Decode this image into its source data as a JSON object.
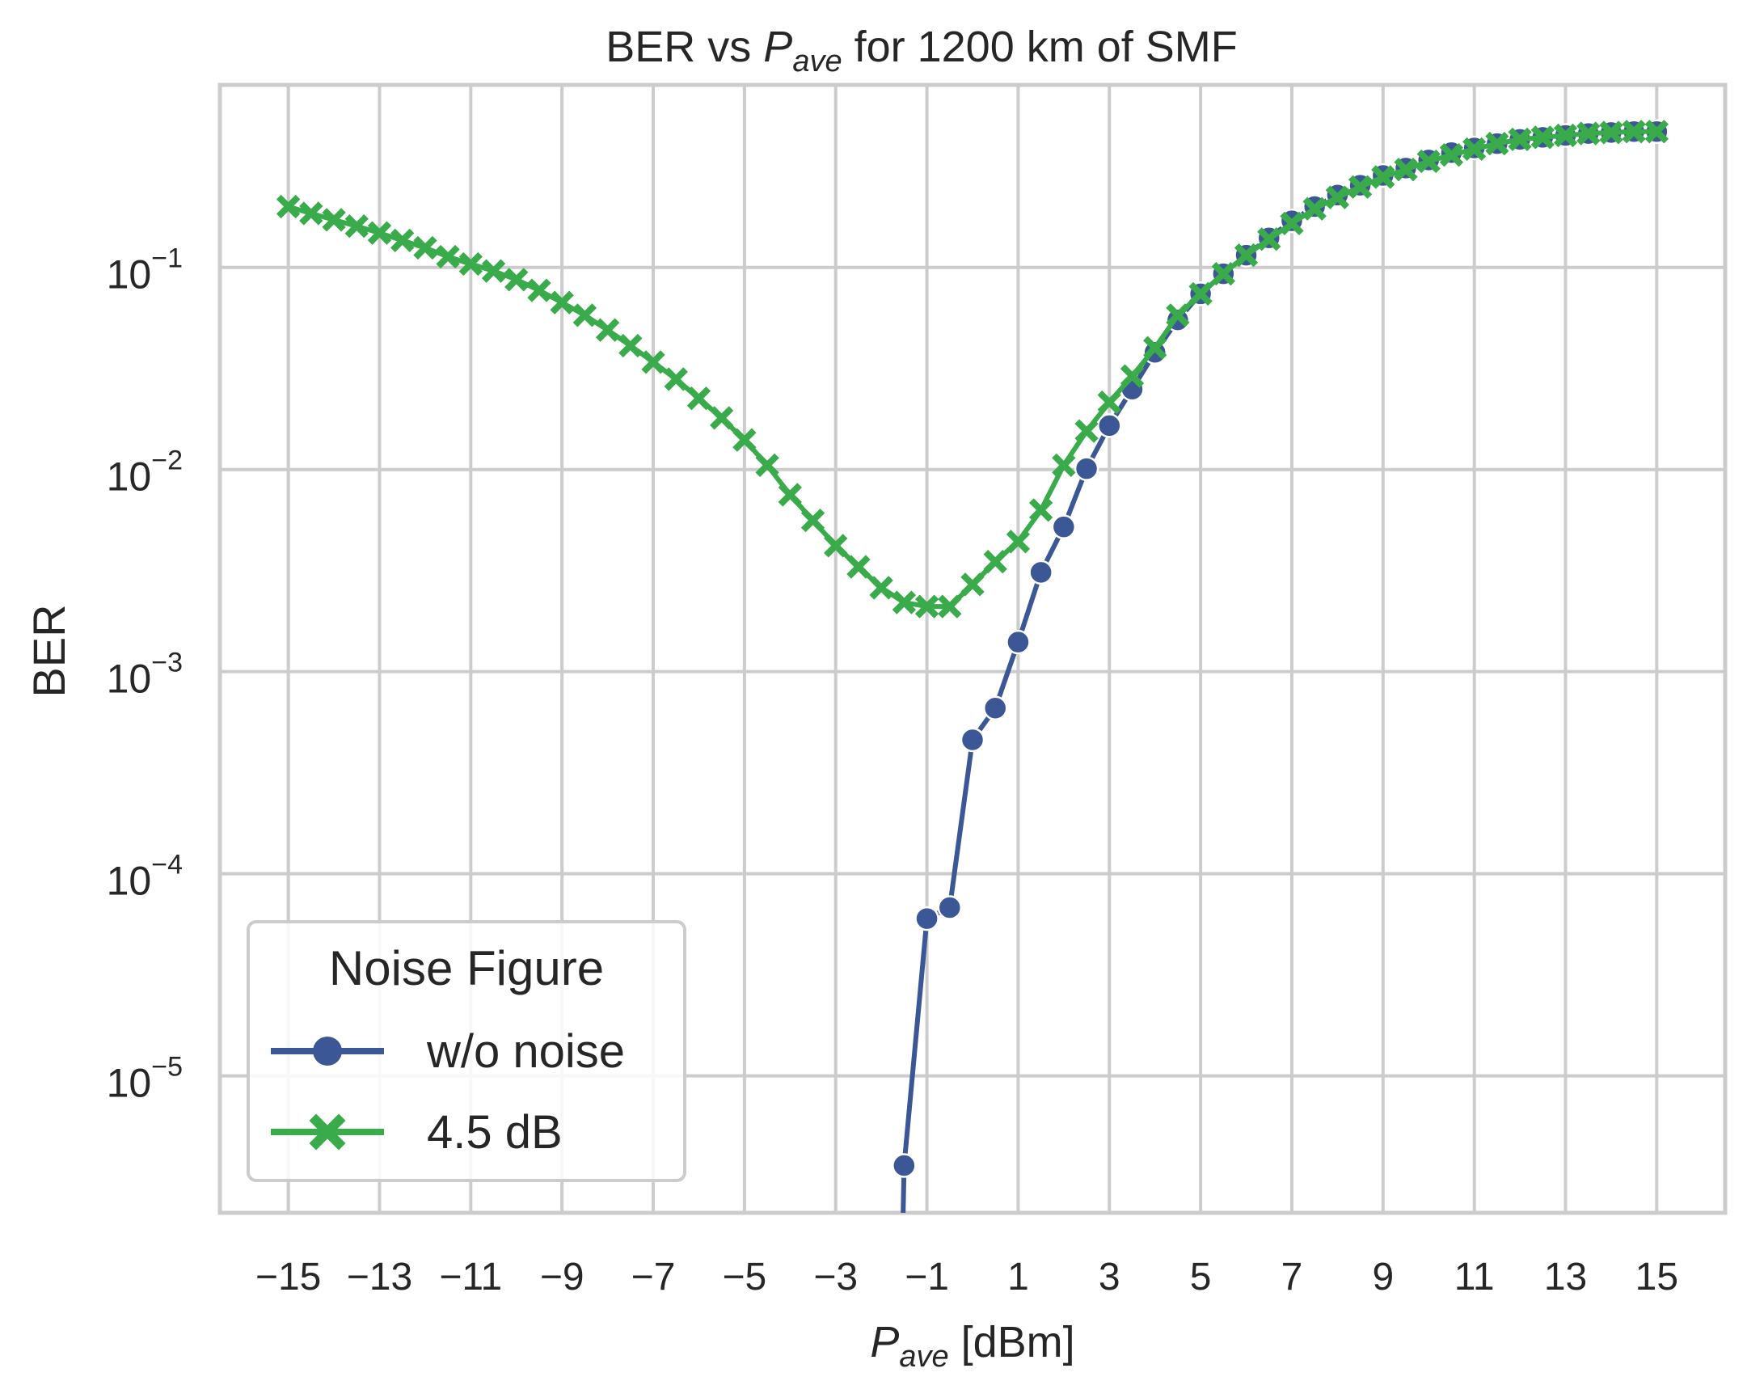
{
  "chart_data": {
    "type": "line",
    "title_prefix": "BER vs ",
    "title_var": "P",
    "title_sub": "ave",
    "title_suffix": " for 1200 km of SMF",
    "xlabel_var": "P",
    "xlabel_sub": "ave",
    "xlabel_unit": " [dBm]",
    "ylabel": "BER",
    "yscale": "log",
    "xlim": [
      -16.5,
      16.5
    ],
    "ylim": [
      2.1e-06,
      0.8
    ],
    "xticks": [
      "−15",
      "−13",
      "−11",
      "−9",
      "−7",
      "−5",
      "−3",
      "−1",
      "1",
      "3",
      "5",
      "7",
      "9",
      "11",
      "13",
      "15"
    ],
    "xtick_values": [
      -15,
      -13,
      -11,
      -9,
      -7,
      -5,
      -3,
      -1,
      1,
      3,
      5,
      7,
      9,
      11,
      13,
      15
    ],
    "yticks": [
      {
        "base": "10",
        "exp": "−1",
        "value": 0.1
      },
      {
        "base": "10",
        "exp": "−2",
        "value": 0.01
      },
      {
        "base": "10",
        "exp": "−3",
        "value": 0.001
      },
      {
        "base": "10",
        "exp": "−4",
        "value": 0.0001
      },
      {
        "base": "10",
        "exp": "−5",
        "value": 1e-05
      }
    ],
    "grid": true,
    "legend": {
      "title": "Noise Figure",
      "placement": "lower-left"
    },
    "series": [
      {
        "name": "w/o noise",
        "color": "#3b5795",
        "marker": "circle",
        "x": [
          -1.5,
          -1.0,
          -0.5,
          0.0,
          0.5,
          1.0,
          1.5,
          2.0,
          2.5,
          3.0,
          3.5,
          4.0,
          4.5,
          5.0,
          5.5,
          6.0,
          6.5,
          7.0,
          7.5,
          8.0,
          8.5,
          9.0,
          9.5,
          10.0,
          10.5,
          11.0,
          11.5,
          12.0,
          12.5,
          13.0,
          13.5,
          14.0,
          14.5,
          15.0
        ],
        "y": [
          3.6e-06,
          6e-05,
          6.8e-05,
          0.00046,
          0.00066,
          0.0014,
          0.0031,
          0.0052,
          0.0101,
          0.0165,
          0.025,
          0.038,
          0.055,
          0.074,
          0.093,
          0.115,
          0.14,
          0.17,
          0.2,
          0.228,
          0.255,
          0.285,
          0.31,
          0.34,
          0.37,
          0.39,
          0.41,
          0.43,
          0.44,
          0.45,
          0.46,
          0.465,
          0.47,
          0.47
        ],
        "tail_x": -1.55,
        "tail_y": 1e-06
      },
      {
        "name": "4.5 dB",
        "color": "#3aab4a",
        "marker": "x",
        "x": [
          -15.0,
          -14.5,
          -14.0,
          -13.5,
          -13.0,
          -12.5,
          -12.0,
          -11.5,
          -11.0,
          -10.5,
          -10.0,
          -9.5,
          -9.0,
          -8.5,
          -8.0,
          -7.5,
          -7.0,
          -6.5,
          -6.0,
          -5.5,
          -5.0,
          -4.5,
          -4.0,
          -3.5,
          -3.0,
          -2.5,
          -2.0,
          -1.5,
          -1.0,
          -0.5,
          0.0,
          0.5,
          1.0,
          1.5,
          2.0,
          2.5,
          3.0,
          3.5,
          4.0,
          4.5,
          5.0,
          5.5,
          6.0,
          6.5,
          7.0,
          7.5,
          8.0,
          8.5,
          9.0,
          9.5,
          10.0,
          10.5,
          11.0,
          11.5,
          12.0,
          12.5,
          13.0,
          13.5,
          14.0,
          14.5,
          15.0
        ],
        "y": [
          0.2,
          0.185,
          0.172,
          0.16,
          0.148,
          0.136,
          0.125,
          0.113,
          0.104,
          0.096,
          0.087,
          0.077,
          0.067,
          0.058,
          0.049,
          0.041,
          0.034,
          0.028,
          0.0225,
          0.018,
          0.014,
          0.0105,
          0.0075,
          0.0056,
          0.0042,
          0.0033,
          0.0026,
          0.0022,
          0.0021,
          0.0021,
          0.0027,
          0.0035,
          0.0044,
          0.0063,
          0.0105,
          0.0155,
          0.0215,
          0.029,
          0.04,
          0.058,
          0.074,
          0.093,
          0.115,
          0.138,
          0.165,
          0.195,
          0.222,
          0.25,
          0.28,
          0.305,
          0.335,
          0.36,
          0.385,
          0.41,
          0.43,
          0.44,
          0.45,
          0.46,
          0.465,
          0.47,
          0.47
        ]
      }
    ]
  }
}
